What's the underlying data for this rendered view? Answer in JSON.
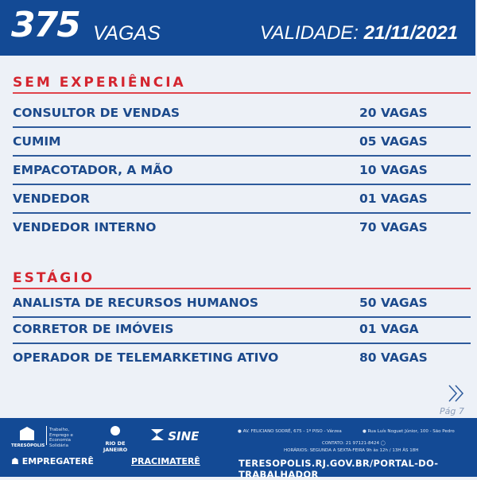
{
  "header": {
    "count": "375",
    "count_label": "VAGAS",
    "validity_label": "VALIDADE:",
    "validity_date": "21/11/2021"
  },
  "sections": [
    {
      "title": "SEM EXPERIÊNCIA",
      "jobs": [
        {
          "title": "CONSULTOR DE VENDAS",
          "vacancies": "20 VAGAS"
        },
        {
          "title": "CUMIM",
          "vacancies": "05 VAGAS"
        },
        {
          "title": "EMPACOTADOR, A MÃO",
          "vacancies": "10 VAGAS"
        },
        {
          "title": "VENDEDOR",
          "vacancies": "01 VAGAS"
        },
        {
          "title": "VENDEDOR INTERNO",
          "vacancies": "70 VAGAS"
        }
      ]
    },
    {
      "title": "ESTÁGIO",
      "jobs": [
        {
          "title": "ANALISTA DE RECURSOS HUMANOS",
          "vacancies": "50 VAGAS"
        },
        {
          "title": "CORRETOR DE IMÓVEIS",
          "vacancies": "01 VAGA"
        },
        {
          "title": "OPERADOR DE TELEMARKETING ATIVO",
          "vacancies": "80 VAGAS"
        }
      ]
    }
  ],
  "pagination": {
    "next_icon": "double-chevron-right",
    "page": "Pág 7"
  },
  "footer": {
    "logos": {
      "prefeitura": "TERESÓPOLIS",
      "secretaria": "Trabalho, Emprego e Economia Solidária",
      "governo": "RIO DE JANEIRO",
      "sine": "SINE",
      "empregatere": "EMPREGATERÊ",
      "pracimatere": "PRACIMATERÊ"
    },
    "address1": "AV. FELICIANO SODRÉ, 675 - 1º PISO - Várzea",
    "address2": "Rua Luís Noguet Júnior, 100 - São Pedro",
    "contact": "CONTATO: 21 97121-8424",
    "hours": "HORÁRIOS: SEGUNDA A SEXTA-FEIRA  9h às 12h / 13H ÀS 18H",
    "url": "TERESOPOLIS.RJ.GOV.BR/PORTAL-DO-TRABALHADOR"
  },
  "colors": {
    "primary": "#134a95",
    "accent": "#d4252f",
    "background": "#edf1f7"
  }
}
